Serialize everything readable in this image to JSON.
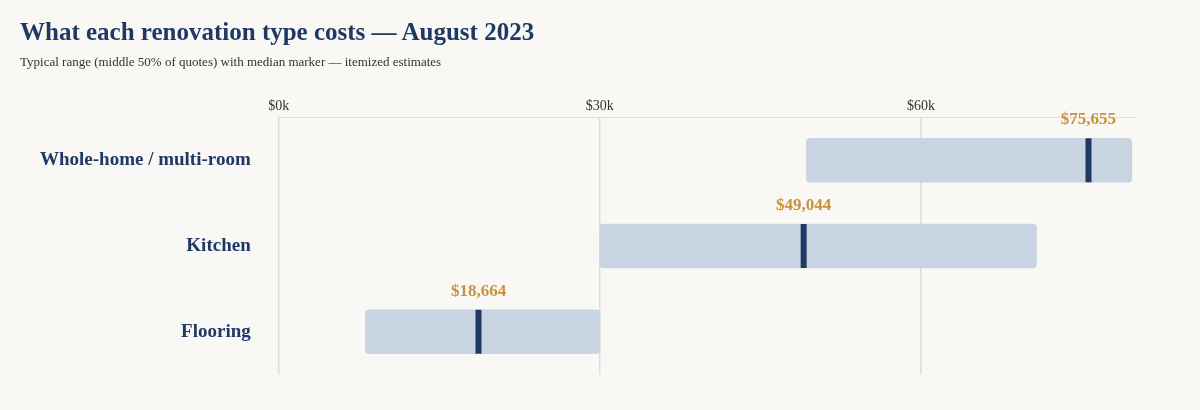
{
  "chart_data": {
    "type": "box",
    "orientation": "horizontal",
    "title": "What each renovation type costs — August 2023",
    "subtitle": "Typical range (middle 50% of quotes) with median marker — itemized estimates",
    "categories": [
      "Whole-home / multi-room",
      "Kitchen",
      "Flooring"
    ],
    "series": [
      {
        "color": "#c9d4e3",
        "boxes": [
          {
            "low": 49300,
            "q1": 49300,
            "median": 75655,
            "q3": 79700,
            "high": 79700
          },
          {
            "low": 30000,
            "q1": 30000,
            "median": 49044,
            "q3": 70800,
            "high": 70800
          },
          {
            "low": 8100,
            "q1": 8100,
            "median": 18664,
            "q3": 30000,
            "high": 30000
          }
        ]
      }
    ],
    "annotations": [
      {
        "text": "$75,655",
        "x": 75655,
        "y": "Whole-home / multi-room"
      },
      {
        "text": "$49,044",
        "x": 49044,
        "y": "Kitchen"
      },
      {
        "text": "$18,664",
        "x": 18664,
        "y": "Flooring"
      }
    ],
    "xlim": [
      0,
      80000
    ],
    "xticks": [
      {
        "value": 0,
        "label": "$0k"
      },
      {
        "value": 30000,
        "label": "$30k"
      },
      {
        "value": 60000,
        "label": "$60k"
      }
    ],
    "grid": "x",
    "legend": false
  }
}
